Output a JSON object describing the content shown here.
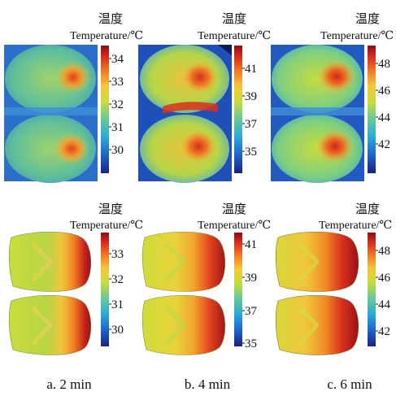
{
  "figure": {
    "unit_label_cn": "温度",
    "unit_label_en": "Temperature/℃",
    "columns": [
      {
        "caption": "a. 2 min",
        "measured_ticks": [
          "34",
          "33",
          "32",
          "31",
          "30"
        ],
        "simulated_ticks": [
          "33",
          "32",
          "31",
          "30"
        ]
      },
      {
        "caption": "b. 4 min",
        "measured_ticks": [
          "41",
          "39",
          "37",
          "35"
        ],
        "simulated_ticks": [
          "41",
          "39",
          "37",
          "35"
        ]
      },
      {
        "caption": "c. 6 min",
        "measured_ticks": [
          "48",
          "46",
          "44",
          "42"
        ],
        "simulated_ticks": [
          "48",
          "46",
          "44",
          "42"
        ]
      }
    ],
    "colormap": [
      "#1a237e",
      "#1e63c8",
      "#2aa8d8",
      "#63c99a",
      "#c8dc3c",
      "#f5c83a",
      "#f07b25",
      "#d6281e",
      "#8b0d12"
    ]
  }
}
